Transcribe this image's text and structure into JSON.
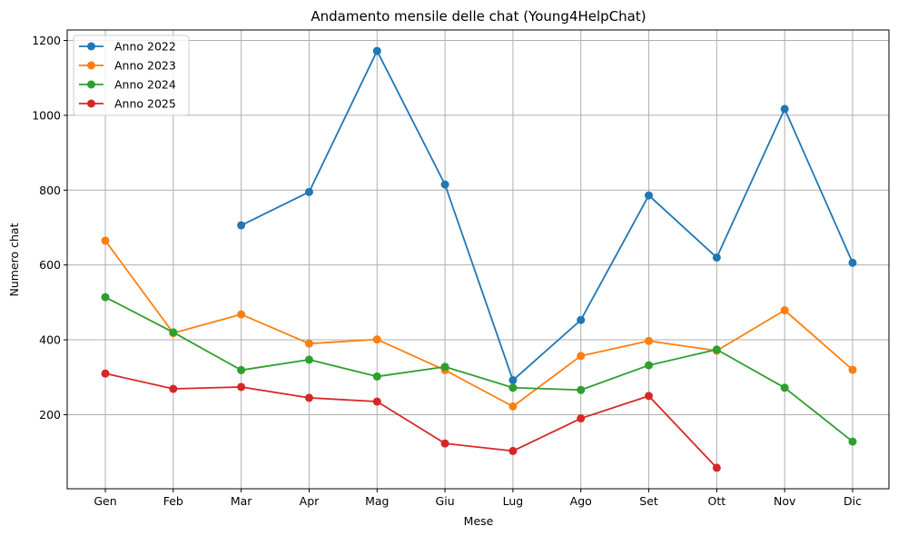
{
  "chart_data": {
    "type": "line",
    "title": "Andamento mensile delle chat (Young4HelpChat)",
    "xlabel": "Mese",
    "ylabel": "Numero chat",
    "categories": [
      "Gen",
      "Feb",
      "Mar",
      "Apr",
      "Mag",
      "Giu",
      "Lug",
      "Ago",
      "Set",
      "Ott",
      "Nov",
      "Dic"
    ],
    "yticks": [
      200,
      400,
      600,
      800,
      1000,
      1200
    ],
    "ylim": [
      2,
      1228
    ],
    "grid": true,
    "legend_position": "top-left",
    "series": [
      {
        "name": "Anno 2022",
        "color": "#1f77b4",
        "values": [
          null,
          null,
          706,
          795,
          1172,
          815,
          292,
          453,
          786,
          620,
          1017,
          606
        ]
      },
      {
        "name": "Anno 2023",
        "color": "#ff7f0e",
        "values": [
          665,
          418,
          468,
          390,
          401,
          319,
          222,
          357,
          397,
          371,
          479,
          320
        ]
      },
      {
        "name": "Anno 2024",
        "color": "#2ca02c",
        "values": [
          514,
          420,
          319,
          347,
          302,
          328,
          272,
          266,
          332,
          374,
          272,
          128
        ]
      },
      {
        "name": "Anno 2025",
        "color": "#d62728",
        "values": [
          310,
          269,
          274,
          245,
          235,
          123,
          103,
          190,
          250,
          58,
          null,
          null
        ]
      }
    ]
  }
}
